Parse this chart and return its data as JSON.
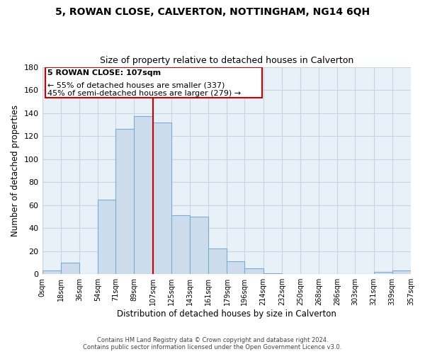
{
  "title": "5, ROWAN CLOSE, CALVERTON, NOTTINGHAM, NG14 6QH",
  "subtitle": "Size of property relative to detached houses in Calverton",
  "xlabel": "Distribution of detached houses by size in Calverton",
  "ylabel": "Number of detached properties",
  "bar_left_edges": [
    0,
    18,
    36,
    54,
    71,
    89,
    107,
    125,
    143,
    161,
    179,
    196,
    214,
    232,
    250,
    268,
    286,
    303,
    321,
    339
  ],
  "bar_heights": [
    3,
    10,
    0,
    65,
    126,
    137,
    132,
    51,
    50,
    22,
    11,
    5,
    1,
    0,
    0,
    0,
    0,
    0,
    2,
    3
  ],
  "bar_widths": [
    18,
    18,
    18,
    17,
    18,
    18,
    18,
    18,
    18,
    18,
    17,
    18,
    18,
    18,
    18,
    18,
    17,
    18,
    18,
    18
  ],
  "bar_color": "#cddcec",
  "bar_edgecolor": "#7aadd4",
  "vline_x": 107,
  "vline_color": "#cc0000",
  "ylim": [
    0,
    180
  ],
  "yticks": [
    0,
    20,
    40,
    60,
    80,
    100,
    120,
    140,
    160,
    180
  ],
  "xtick_labels": [
    "0sqm",
    "18sqm",
    "36sqm",
    "54sqm",
    "71sqm",
    "89sqm",
    "107sqm",
    "125sqm",
    "143sqm",
    "161sqm",
    "179sqm",
    "196sqm",
    "214sqm",
    "232sqm",
    "250sqm",
    "268sqm",
    "286sqm",
    "303sqm",
    "321sqm",
    "339sqm",
    "357sqm"
  ],
  "xtick_positions": [
    0,
    18,
    36,
    54,
    71,
    89,
    107,
    125,
    143,
    161,
    179,
    196,
    214,
    232,
    250,
    268,
    286,
    303,
    321,
    339,
    357
  ],
  "annotation_title": "5 ROWAN CLOSE: 107sqm",
  "annotation_line1": "← 55% of detached houses are smaller (337)",
  "annotation_line2": "45% of semi-detached houses are larger (279) →",
  "annotation_box_facecolor": "#ffffff",
  "annotation_box_edgecolor": "#cc0000",
  "footer_line1": "Contains HM Land Registry data © Crown copyright and database right 2024.",
  "footer_line2": "Contains public sector information licensed under the Open Government Licence v3.0.",
  "grid_color": "#c8d4e0",
  "background_color": "#e8f0f8",
  "xlim_min": 0,
  "xlim_max": 357
}
